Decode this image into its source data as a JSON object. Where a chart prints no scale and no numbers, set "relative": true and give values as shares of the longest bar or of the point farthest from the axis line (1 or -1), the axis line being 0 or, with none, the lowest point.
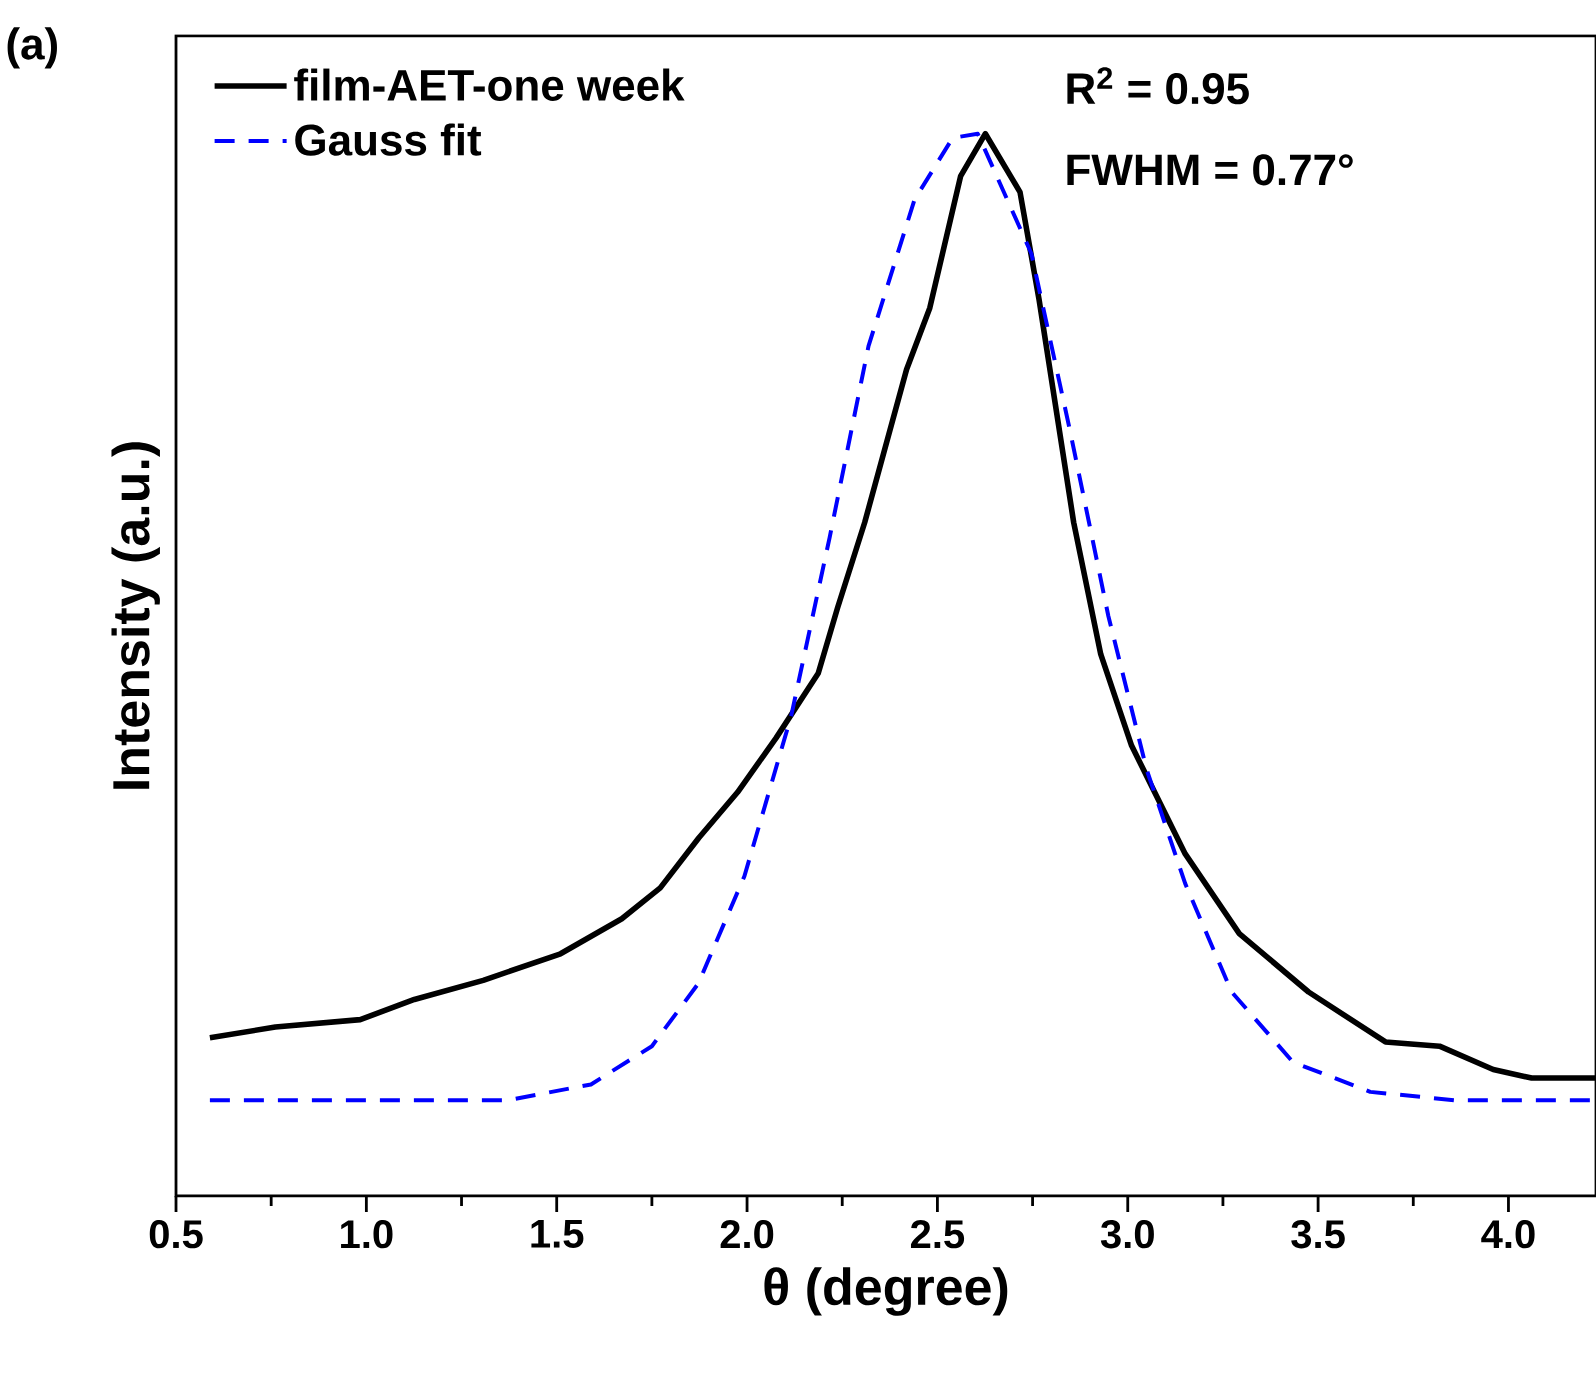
{
  "chart_data": {
    "type": "line",
    "relative": true,
    "xlabel": "θ (degree)",
    "ylabel": "Intensity (a.u.)",
    "xlim": [
      0.5,
      4.23
    ],
    "xticks": [
      {
        "value": 0.5,
        "label": "0.5"
      },
      {
        "value": 1.0,
        "label": "1.0"
      },
      {
        "value": 1.5,
        "label": "1.5"
      },
      {
        "value": 2.0,
        "label": "2.0"
      },
      {
        "value": 2.5,
        "label": "2.5"
      },
      {
        "value": 3.0,
        "label": "3.0"
      },
      {
        "value": 3.5,
        "label": "3.5"
      },
      {
        "value": 4.0,
        "label": "4.0"
      }
    ],
    "tick_labels": "x",
    "legend": "top left",
    "grid": false,
    "marker": "none",
    "annotations": [
      "(a)",
      "R$^{2}$ = 0.95",
      "FWHM = 0.77°"
    ],
    "series": [
      {
        "name": "film-AET-one week",
        "color": "#000000",
        "line_style": "solid",
        "x": [
          0.589,
          0.761,
          0.984,
          1.126,
          1.307,
          1.51,
          1.671,
          1.772,
          1.873,
          1.975,
          2.076,
          2.187,
          2.238,
          2.309,
          2.419,
          2.48,
          2.561,
          2.626,
          2.717,
          2.767,
          2.858,
          2.929,
          3.01,
          3.151,
          3.293,
          3.475,
          3.677,
          3.819,
          3.96,
          4.061,
          4.23
        ],
        "values": [
          0.149,
          0.159,
          0.166,
          0.185,
          0.203,
          0.228,
          0.261,
          0.29,
          0.337,
          0.38,
          0.431,
          0.492,
          0.554,
          0.634,
          0.778,
          0.836,
          0.96,
          1.0,
          0.945,
          0.844,
          0.634,
          0.51,
          0.424,
          0.322,
          0.247,
          0.192,
          0.145,
          0.141,
          0.119,
          0.111,
          0.111
        ]
      },
      {
        "name": "Gauss fit",
        "color": "#0000ff",
        "line_style": "dashed",
        "x": [
          0.589,
          1.37,
          1.59,
          1.75,
          1.872,
          1.993,
          2.116,
          2.217,
          2.319,
          2.44,
          2.54,
          2.606,
          2.747,
          2.848,
          2.949,
          3.05,
          3.151,
          3.273,
          3.434,
          3.637,
          3.86,
          4.23
        ],
        "values": [
          0.09,
          0.09,
          0.105,
          0.141,
          0.2,
          0.301,
          0.452,
          0.62,
          0.8,
          0.938,
          0.996,
          1.0,
          0.887,
          0.721,
          0.546,
          0.401,
          0.294,
          0.192,
          0.126,
          0.098,
          0.09,
          0.09
        ]
      }
    ]
  }
}
